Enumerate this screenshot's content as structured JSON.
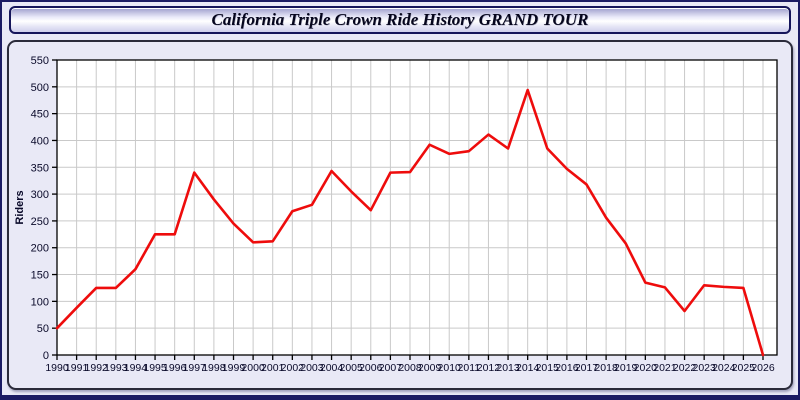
{
  "title": "California Triple Crown Ride History GRAND TOUR",
  "colors": {
    "line": "#ee0c0c",
    "plot_background": "#ffffff",
    "gridline": "#c9c9c9",
    "axis": "#000000",
    "tick_label": "#0a0a2a",
    "panel_background": "#e9e9f6",
    "window_border": "#1b1b63"
  },
  "chart_data": {
    "type": "line",
    "title": "California Triple Crown Ride History GRAND TOUR",
    "xlabel": "",
    "ylabel": "Riders",
    "ylim": [
      0,
      550
    ],
    "ytick_step": 50,
    "grid": true,
    "legend": false,
    "x": [
      1990,
      1991,
      1992,
      1993,
      1994,
      1995,
      1996,
      1997,
      1998,
      1999,
      2000,
      2001,
      2002,
      2003,
      2004,
      2005,
      2006,
      2007,
      2008,
      2009,
      2010,
      2011,
      2012,
      2013,
      2014,
      2015,
      2016,
      2017,
      2018,
      2019,
      2020,
      2021,
      2022,
      2023,
      2024,
      2025,
      2026
    ],
    "series": [
      {
        "name": "Riders",
        "color": "#ee0c0c",
        "values": [
          50,
          88,
          125,
          125,
          160,
          225,
          225,
          340,
          290,
          245,
          210,
          212,
          268,
          280,
          343,
          305,
          270,
          340,
          341,
          392,
          375,
          380,
          411,
          385,
          494,
          385,
          347,
          318,
          256,
          208,
          135,
          126,
          82,
          130,
          127,
          125,
          0
        ]
      }
    ]
  }
}
